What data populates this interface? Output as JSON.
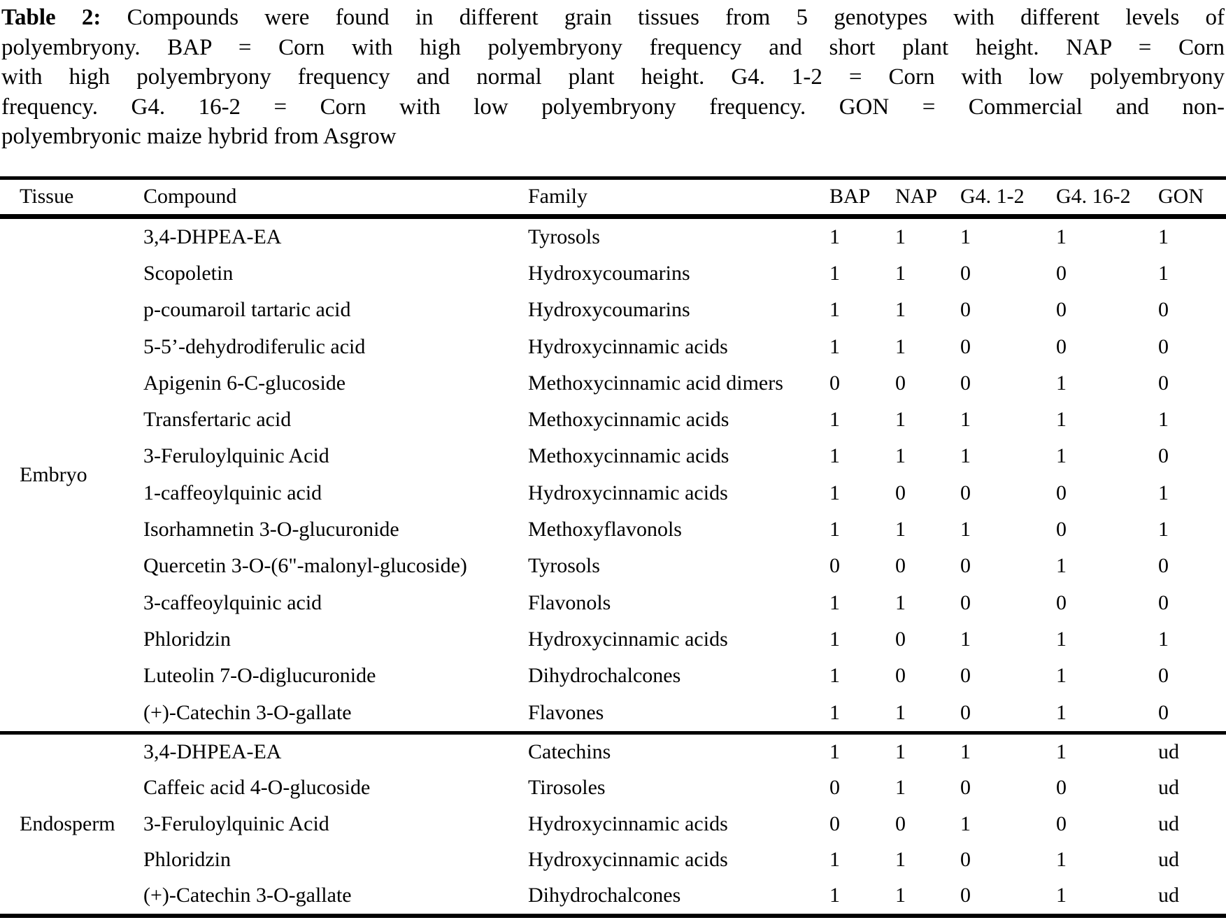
{
  "caption": {
    "label": "Table 2:",
    "lines": [
      "Compounds were found in different grain tissues from 5 genotypes with different levels of",
      "polyembryony. BAP = Corn with high polyembryony frequency and short plant height. NAP = Corn",
      "with high polyembryony frequency and normal plant height. G4. 1-2 = Corn with low polyembryony",
      "frequency. G4. 16-2 = Corn with low polyembryony frequency. GON = Commercial and non-",
      "polyembryonic maize hybrid from Asgrow"
    ]
  },
  "table": {
    "columns": [
      "Tissue",
      "Compound",
      "Family",
      "BAP",
      "NAP",
      "G4. 1-2",
      "G4. 16-2",
      "GON"
    ],
    "groups": [
      {
        "tissue": "Embryo",
        "rows": [
          {
            "compound": "3,4-DHPEA-EA",
            "family": "Tyrosols",
            "values": [
              "1",
              "1",
              "1",
              "1",
              "1"
            ]
          },
          {
            "compound": "Scopoletin",
            "family": "Hydroxycoumarins",
            "values": [
              "1",
              "1",
              "0",
              "0",
              "1"
            ]
          },
          {
            "compound": "p-coumaroil tartaric acid",
            "family": "Hydroxycoumarins",
            "values": [
              "1",
              "1",
              "0",
              "0",
              "0"
            ]
          },
          {
            "compound": "5-5’-dehydrodiferulic acid",
            "family": "Hydroxycinnamic acids",
            "values": [
              "1",
              "1",
              "0",
              "0",
              "0"
            ]
          },
          {
            "compound": "Apigenin 6-C-glucoside",
            "family": "Methoxycinnamic acid dimers",
            "values": [
              "0",
              "0",
              "0",
              "1",
              "0"
            ]
          },
          {
            "compound": "Transfertaric acid",
            "family": "Methoxycinnamic acids",
            "values": [
              "1",
              "1",
              "1",
              "1",
              "1"
            ]
          },
          {
            "compound": "3-Feruloylquinic Acid",
            "family": "Methoxycinnamic acids",
            "values": [
              "1",
              "1",
              "1",
              "1",
              "0"
            ]
          },
          {
            "compound": "1-caffeoylquinic acid",
            "family": "Hydroxycinnamic acids",
            "values": [
              "1",
              "0",
              "0",
              "0",
              "1"
            ]
          },
          {
            "compound": "Isorhamnetin 3-O-glucuronide",
            "family": "Methoxyflavonols",
            "values": [
              "1",
              "1",
              "1",
              "0",
              "1"
            ]
          },
          {
            "compound": "Quercetin 3-O-(6\"-malonyl-glucoside)",
            "family": "Tyrosols",
            "values": [
              "0",
              "0",
              "0",
              "1",
              "0"
            ]
          },
          {
            "compound": "3-caffeoylquinic acid",
            "family": "Flavonols",
            "values": [
              "1",
              "1",
              "0",
              "0",
              "0"
            ]
          },
          {
            "compound": "Phloridzin",
            "family": "Hydroxycinnamic acids",
            "values": [
              "1",
              "0",
              "1",
              "1",
              "1"
            ]
          },
          {
            "compound": "Luteolin 7-O-diglucuronide",
            "family": "Dihydrochalcones",
            "values": [
              "1",
              "0",
              "0",
              "1",
              "0"
            ]
          },
          {
            "compound": "(+)-Catechin 3-O-gallate",
            "family": "Flavones",
            "values": [
              "1",
              "1",
              "0",
              "1",
              "0"
            ]
          }
        ]
      },
      {
        "tissue": "Endosperm",
        "rows": [
          {
            "compound": "3,4-DHPEA-EA",
            "family": "Catechins",
            "values": [
              "1",
              "1",
              "1",
              "1",
              "ud"
            ]
          },
          {
            "compound": "Caffeic acid 4-O-glucoside",
            "family": "Tirosoles",
            "values": [
              "0",
              "1",
              "0",
              "0",
              "ud"
            ]
          },
          {
            "compound": "3-Feruloylquinic Acid",
            "family": "Hydroxycinnamic acids",
            "values": [
              "0",
              "0",
              "1",
              "0",
              "ud"
            ]
          },
          {
            "compound": "Phloridzin",
            "family": "Hydroxycinnamic acids",
            "values": [
              "1",
              "1",
              "0",
              "1",
              "ud"
            ]
          },
          {
            "compound": "(+)-Catechin 3-O-gallate",
            "family": "Dihydrochalcones",
            "values": [
              "1",
              "1",
              "0",
              "1",
              "ud"
            ]
          }
        ]
      }
    ]
  },
  "colors": {
    "text": "#000000",
    "background": "#ffffff",
    "rule": "#000000"
  }
}
